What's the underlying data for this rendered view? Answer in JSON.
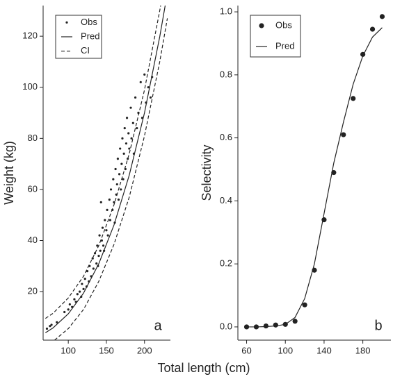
{
  "chart_data": [
    {
      "type": "scatter",
      "xlabel": "Total length (cm)",
      "ylabel": "Weight (kg)",
      "annotation": "a",
      "xlim": [
        67,
        234
      ],
      "ylim": [
        1,
        132
      ],
      "xticks": [
        100,
        150,
        200
      ],
      "yticks": [
        20,
        40,
        60,
        80,
        100,
        120
      ],
      "legend": "upper left",
      "series": [
        {
          "name": "Obs",
          "style": "dots",
          "color": "#222",
          "x": [
            72,
            76,
            78,
            85,
            95,
            100,
            102,
            105,
            108,
            110,
            112,
            115,
            117,
            118,
            120,
            122,
            124,
            125,
            127,
            128,
            130,
            132,
            133,
            135,
            137,
            138,
            140,
            141,
            142,
            144,
            145,
            146,
            148,
            150,
            151,
            152,
            154,
            155,
            156,
            158,
            159,
            160,
            161,
            162,
            163,
            164,
            165,
            166,
            167,
            168,
            169,
            170,
            171,
            172,
            173,
            174,
            175,
            176,
            177,
            178,
            179,
            180,
            182,
            183,
            185,
            186,
            188,
            190,
            192,
            195,
            197,
            200,
            202,
            205,
            208,
            210,
            143,
            147,
            139
          ],
          "values": [
            5.5,
            6.5,
            7,
            8,
            12,
            13,
            15,
            14,
            17,
            16,
            19,
            20,
            18,
            23,
            21,
            25,
            22,
            28,
            24,
            30,
            26,
            33,
            29,
            35,
            31,
            38,
            34,
            42,
            36,
            40,
            45,
            38,
            48,
            44,
            52,
            42,
            56,
            48,
            60,
            52,
            64,
            55,
            47,
            68,
            58,
            62,
            72,
            56,
            66,
            76,
            60,
            70,
            80,
            64,
            74,
            84,
            68,
            78,
            88,
            72,
            82,
            76,
            92,
            80,
            86,
            74,
            96,
            84,
            90,
            102,
            88,
            105,
            94,
            100,
            96,
            104,
            55,
            36,
            30
          ]
        },
        {
          "name": "Pred",
          "style": "solid",
          "color": "#222",
          "x": [
            70,
            80,
            100,
            120,
            140,
            160,
            180,
            200,
            220,
            230
          ],
          "values": [
            3.9,
            5.8,
            11.3,
            19.4,
            30.9,
            46.1,
            65.6,
            90,
            119.8,
            136.9
          ]
        },
        {
          "name": "CI",
          "style": "dashed",
          "color": "#222",
          "x": [
            70,
            80,
            100,
            120,
            140,
            160,
            180,
            200,
            220,
            230
          ],
          "upper": [
            9.5,
            11.5,
            17.5,
            26,
            38,
            54,
            74,
            99,
            130,
            147
          ],
          "lower": [
            -1.5,
            0.5,
            5.5,
            13,
            24,
            38.5,
            57,
            81,
            110,
            127
          ]
        }
      ]
    },
    {
      "type": "scatter",
      "ylabel": "Selectivity",
      "annotation": "b",
      "xlim": [
        51,
        209
      ],
      "ylim": [
        -0.042,
        1.02
      ],
      "xticks": [
        60,
        100,
        140,
        180
      ],
      "yticks": [
        {
          "value": 0,
          "label": "0.0"
        },
        {
          "value": 0.2,
          "label": "0.2"
        },
        {
          "value": 0.4,
          "label": "0.4"
        },
        {
          "value": 0.6,
          "label": "0.6"
        },
        {
          "value": 0.8,
          "label": "0.8"
        },
        {
          "value": 1,
          "label": "1.0"
        }
      ],
      "legend": "upper left",
      "series": [
        {
          "name": "Obs",
          "style": "dots",
          "color": "#222",
          "x": [
            60,
            70,
            80,
            90,
            100,
            110,
            120,
            130,
            140,
            150,
            160,
            170,
            180,
            190,
            200
          ],
          "values": [
            0,
            0,
            0.003,
            0.006,
            0.008,
            0.018,
            0.07,
            0.18,
            0.34,
            0.49,
            0.61,
            0.725,
            0.865,
            0.945,
            0.985
          ]
        },
        {
          "name": "Pred",
          "style": "solid",
          "color": "#222",
          "x": [
            60,
            70,
            80,
            90,
            100,
            110,
            120,
            130,
            140,
            150,
            160,
            170,
            180,
            190,
            200
          ],
          "values": [
            0,
            0,
            0.001,
            0.003,
            0.008,
            0.03,
            0.09,
            0.2,
            0.36,
            0.52,
            0.65,
            0.77,
            0.86,
            0.92,
            0.95
          ]
        }
      ]
    }
  ]
}
